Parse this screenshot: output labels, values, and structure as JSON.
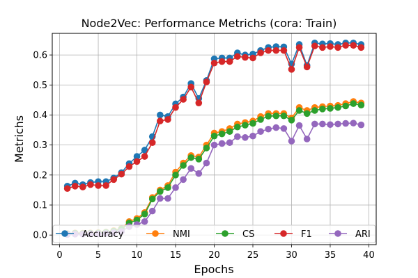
{
  "chart_data": {
    "type": "line",
    "title": "Node2Vec: Performance Metrichs (cora: Train)",
    "xlabel": "Epochs",
    "ylabel": "Metrichs",
    "xlim": [
      -0.95,
      40.95
    ],
    "ylim": [
      -0.032,
      0.672
    ],
    "xticks": [
      0,
      5,
      10,
      15,
      20,
      25,
      30,
      35,
      40
    ],
    "yticks": [
      0.0,
      0.1,
      0.2,
      0.3,
      0.4,
      0.5,
      0.6
    ],
    "ytick_labels": [
      "0.0",
      "0.1",
      "0.2",
      "0.3",
      "0.4",
      "0.5",
      "0.6"
    ],
    "grid": true,
    "legend_position": "lower center",
    "x": [
      1,
      2,
      3,
      4,
      5,
      6,
      7,
      8,
      9,
      10,
      11,
      12,
      13,
      14,
      15,
      16,
      17,
      18,
      19,
      20,
      21,
      22,
      23,
      24,
      25,
      26,
      27,
      28,
      29,
      30,
      31,
      32,
      33,
      34,
      35,
      36,
      37,
      38,
      39
    ],
    "series": [
      {
        "name": "Accuracy",
        "color": "#1f77b4",
        "values": [
          0.163,
          0.173,
          0.168,
          0.175,
          0.178,
          0.178,
          0.19,
          0.208,
          0.238,
          0.262,
          0.283,
          0.328,
          0.4,
          0.395,
          0.437,
          0.46,
          0.505,
          0.455,
          0.515,
          0.587,
          0.59,
          0.59,
          0.607,
          0.6,
          0.603,
          0.615,
          0.625,
          0.628,
          0.627,
          0.57,
          0.635,
          0.565,
          0.64,
          0.637,
          0.638,
          0.635,
          0.64,
          0.64,
          0.635
        ]
      },
      {
        "name": "NMI",
        "color": "#ff7f0e",
        "values": [
          0.005,
          0.007,
          0.006,
          0.007,
          0.008,
          0.01,
          0.015,
          0.022,
          0.045,
          0.055,
          0.075,
          0.125,
          0.15,
          0.165,
          0.21,
          0.24,
          0.265,
          0.26,
          0.3,
          0.34,
          0.345,
          0.355,
          0.37,
          0.375,
          0.38,
          0.395,
          0.405,
          0.405,
          0.405,
          0.39,
          0.425,
          0.415,
          0.425,
          0.428,
          0.43,
          0.432,
          0.438,
          0.445,
          0.44
        ]
      },
      {
        "name": "CS",
        "color": "#2ca02c",
        "values": [
          0.004,
          0.006,
          0.005,
          0.006,
          0.007,
          0.009,
          0.013,
          0.02,
          0.04,
          0.05,
          0.07,
          0.12,
          0.145,
          0.158,
          0.2,
          0.232,
          0.258,
          0.253,
          0.29,
          0.33,
          0.337,
          0.345,
          0.36,
          0.366,
          0.372,
          0.385,
          0.396,
          0.397,
          0.397,
          0.383,
          0.415,
          0.405,
          0.415,
          0.42,
          0.422,
          0.425,
          0.43,
          0.438,
          0.433
        ]
      },
      {
        "name": "F1",
        "color": "#d62728",
        "values": [
          0.155,
          0.163,
          0.16,
          0.168,
          0.165,
          0.165,
          0.185,
          0.203,
          0.228,
          0.245,
          0.262,
          0.308,
          0.38,
          0.385,
          0.425,
          0.452,
          0.493,
          0.44,
          0.51,
          0.573,
          0.578,
          0.578,
          0.595,
          0.592,
          0.59,
          0.607,
          0.615,
          0.615,
          0.615,
          0.552,
          0.625,
          0.56,
          0.63,
          0.625,
          0.628,
          0.625,
          0.632,
          0.632,
          0.625
        ]
      },
      {
        "name": "ARI",
        "color": "#9467bd",
        "values": [
          0.002,
          0.003,
          0.003,
          0.004,
          0.004,
          0.005,
          0.008,
          0.012,
          0.028,
          0.035,
          0.045,
          0.08,
          0.122,
          0.122,
          0.158,
          0.185,
          0.222,
          0.205,
          0.24,
          0.3,
          0.305,
          0.308,
          0.328,
          0.325,
          0.33,
          0.345,
          0.353,
          0.358,
          0.355,
          0.313,
          0.365,
          0.32,
          0.37,
          0.37,
          0.368,
          0.37,
          0.372,
          0.373,
          0.367
        ]
      }
    ]
  }
}
